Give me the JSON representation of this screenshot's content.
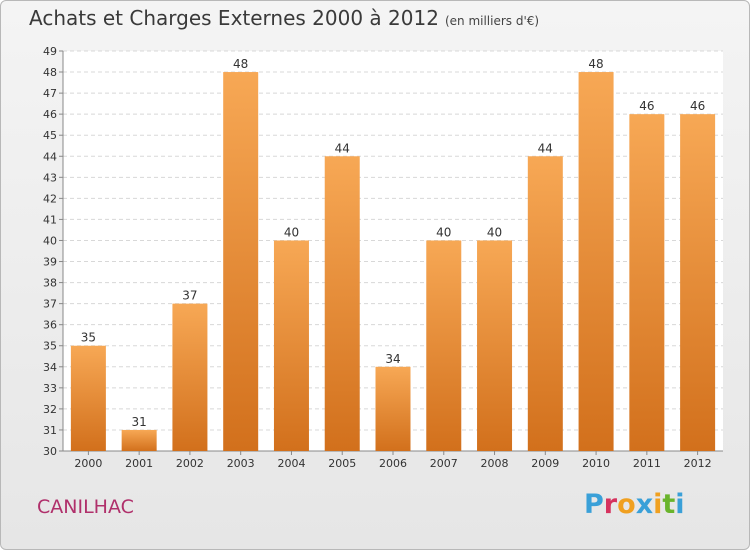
{
  "header": {
    "title": "Achats et Charges Externes 2000 à 2012",
    "subtitle": "(en milliers d'€)"
  },
  "footer": {
    "commune": "CANILHAC",
    "logo_text": "Proxiti"
  },
  "colors": {
    "bar_top": "#f7a855",
    "bar_bottom": "#d2701c",
    "title": "#3a3a3a",
    "commune": "#b0306b",
    "logo": [
      "#3aa0d8",
      "#d6325e",
      "#f0a020",
      "#3aa0d8",
      "#f0a020",
      "#6ab42c",
      "#3aa0d8"
    ]
  },
  "chart_data": {
    "type": "bar",
    "title": "Achats et Charges Externes 2000 à 2012",
    "subtitle": "(en milliers d'€)",
    "categories": [
      "2000",
      "2001",
      "2002",
      "2003",
      "2004",
      "2005",
      "2006",
      "2007",
      "2008",
      "2009",
      "2010",
      "2011",
      "2012"
    ],
    "values": [
      35,
      31,
      37,
      48,
      40,
      44,
      34,
      40,
      40,
      44,
      48,
      46,
      46
    ],
    "ylim": [
      30,
      49
    ],
    "yticks": [
      30,
      31,
      32,
      33,
      34,
      35,
      36,
      37,
      38,
      39,
      40,
      41,
      42,
      43,
      44,
      45,
      46,
      47,
      48,
      49
    ],
    "grid": true,
    "data_labels": true
  }
}
